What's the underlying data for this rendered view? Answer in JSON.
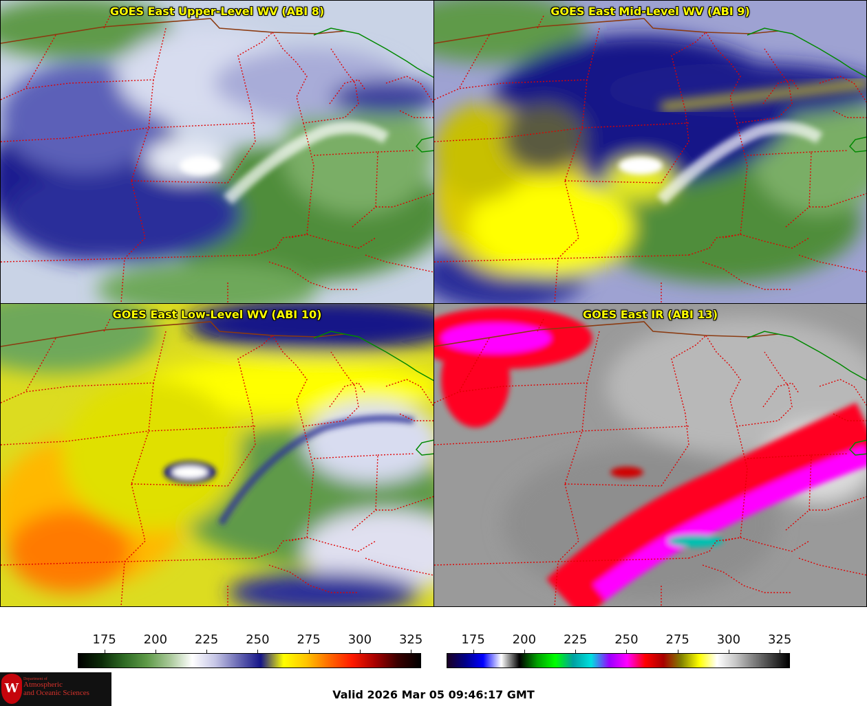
{
  "panels": [
    {
      "id": "abi8",
      "title": "GOES East Upper-Level WV (ABI 8)"
    },
    {
      "id": "abi9",
      "title": "GOES East Mid-Level WV (ABI 9)"
    },
    {
      "id": "abi10",
      "title": "GOES East Low-Level WV (ABI 10)"
    },
    {
      "id": "abi13",
      "title": "GOES East IR (ABI 13)"
    }
  ],
  "colorbars": {
    "wv": {
      "ticks": [
        "175",
        "200",
        "225",
        "250",
        "275",
        "300",
        "325"
      ],
      "range": [
        162,
        330
      ],
      "colors": [
        "#000000",
        "#0b2a08",
        "#2e6a24",
        "#5e9a48",
        "#a8c898",
        "#ffffff",
        "#c6c6e6",
        "#6a6ab4",
        "#151588",
        "#ffff00",
        "#ffc400",
        "#ff6a00",
        "#ff1a00",
        "#a80000",
        "#3a0000",
        "#000000"
      ]
    },
    "ir": {
      "ticks": [
        "175",
        "200",
        "225",
        "250",
        "275",
        "300",
        "325"
      ],
      "range": [
        162,
        330
      ],
      "colors": [
        "#1a0022",
        "#000088",
        "#0000ff",
        "#ffffff",
        "#000000",
        "#00a000",
        "#00ff00",
        "#00a0a0",
        "#00e0e0",
        "#9a00ff",
        "#ff00ff",
        "#ff0000",
        "#a80000",
        "#808000",
        "#ffff00",
        "#ffffff",
        "#c8c8c8",
        "#808080",
        "#404040",
        "#000000"
      ]
    }
  },
  "footer": {
    "valid_text": "Valid 2026 Mar 05 09:46:17 GMT"
  },
  "logo": {
    "dept": "Department of",
    "line1": "Atmospheric",
    "line2": "and Oceanic Sciences",
    "seal": "W"
  },
  "colors": {
    "title_yellow": "#ffff00",
    "state_border": "#e00000",
    "country_border": "#8b3a10",
    "lake_border": "#008800"
  }
}
